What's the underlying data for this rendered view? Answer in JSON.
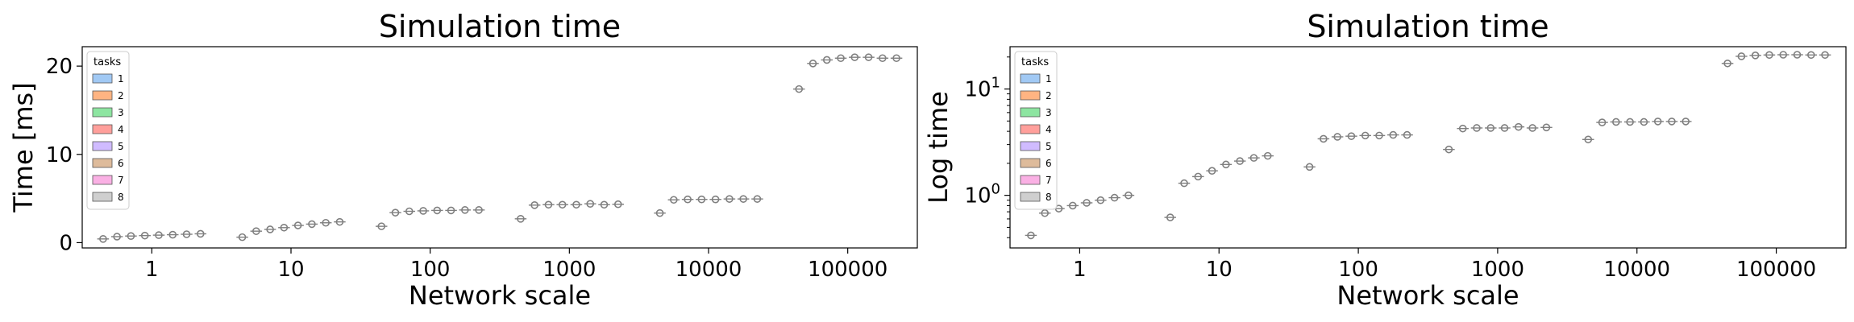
{
  "chart_data": [
    {
      "type": "boxplot",
      "title": "Simulation time",
      "xlabel": "Network scale",
      "ylabel": "Time [ms]",
      "yscale": "linear",
      "ylim": [
        -0.6,
        22.2
      ],
      "yticks": [
        0,
        10,
        20
      ],
      "categories": [
        "1",
        "10",
        "100",
        "1000",
        "10000",
        "100000"
      ],
      "hue_levels": [
        "1",
        "2",
        "3",
        "4",
        "5",
        "6",
        "7",
        "8"
      ],
      "legend": {
        "title": "tasks",
        "loc": "upper left"
      },
      "series": [
        {
          "name": "1",
          "values": [
            0.42,
            0.62,
            1.85,
            2.7,
            3.35,
            17.4
          ]
        },
        {
          "name": "2",
          "values": [
            0.68,
            1.3,
            3.4,
            4.25,
            4.85,
            20.3
          ]
        },
        {
          "name": "3",
          "values": [
            0.75,
            1.5,
            3.55,
            4.3,
            4.9,
            20.7
          ]
        },
        {
          "name": "4",
          "values": [
            0.8,
            1.7,
            3.6,
            4.3,
            4.9,
            20.9
          ]
        },
        {
          "name": "5",
          "values": [
            0.85,
            1.95,
            3.65,
            4.3,
            4.9,
            21.0
          ]
        },
        {
          "name": "6",
          "values": [
            0.9,
            2.1,
            3.65,
            4.4,
            4.95,
            21.0
          ]
        },
        {
          "name": "7",
          "values": [
            0.95,
            2.25,
            3.7,
            4.3,
            4.95,
            20.9
          ]
        },
        {
          "name": "8",
          "values": [
            1.0,
            2.35,
            3.7,
            4.35,
            4.95,
            20.9
          ]
        }
      ]
    },
    {
      "type": "boxplot",
      "title": "Simulation time",
      "xlabel": "Network scale",
      "ylabel": "Log time",
      "yscale": "log",
      "ylim": [
        0.32,
        25
      ],
      "yticks": [
        1,
        10
      ],
      "ytick_labels": [
        "10^0",
        "10^1"
      ],
      "categories": [
        "1",
        "10",
        "100",
        "1000",
        "10000",
        "100000"
      ],
      "hue_levels": [
        "1",
        "2",
        "3",
        "4",
        "5",
        "6",
        "7",
        "8"
      ],
      "legend": {
        "title": "tasks",
        "loc": "upper left"
      },
      "series": [
        {
          "name": "1",
          "values": [
            0.42,
            0.62,
            1.85,
            2.7,
            3.35,
            17.4
          ]
        },
        {
          "name": "2",
          "values": [
            0.68,
            1.3,
            3.4,
            4.25,
            4.85,
            20.3
          ]
        },
        {
          "name": "3",
          "values": [
            0.75,
            1.5,
            3.55,
            4.3,
            4.9,
            20.7
          ]
        },
        {
          "name": "4",
          "values": [
            0.8,
            1.7,
            3.6,
            4.3,
            4.9,
            20.9
          ]
        },
        {
          "name": "5",
          "values": [
            0.85,
            1.95,
            3.65,
            4.3,
            4.9,
            21.0
          ]
        },
        {
          "name": "6",
          "values": [
            0.9,
            2.1,
            3.65,
            4.4,
            4.95,
            21.0
          ]
        },
        {
          "name": "7",
          "values": [
            0.95,
            2.25,
            3.7,
            4.3,
            4.95,
            20.9
          ]
        },
        {
          "name": "8",
          "values": [
            1.0,
            2.35,
            3.7,
            4.35,
            4.95,
            20.9
          ]
        }
      ]
    }
  ],
  "colors": {
    "hue_palette": [
      "#a1c9f4",
      "#ffb482",
      "#8de5a1",
      "#ff9f9b",
      "#d0bbff",
      "#debb9b",
      "#fab0e4",
      "#cfcfcf"
    ],
    "marker": "#7f7f7f",
    "axis": "#000000"
  }
}
